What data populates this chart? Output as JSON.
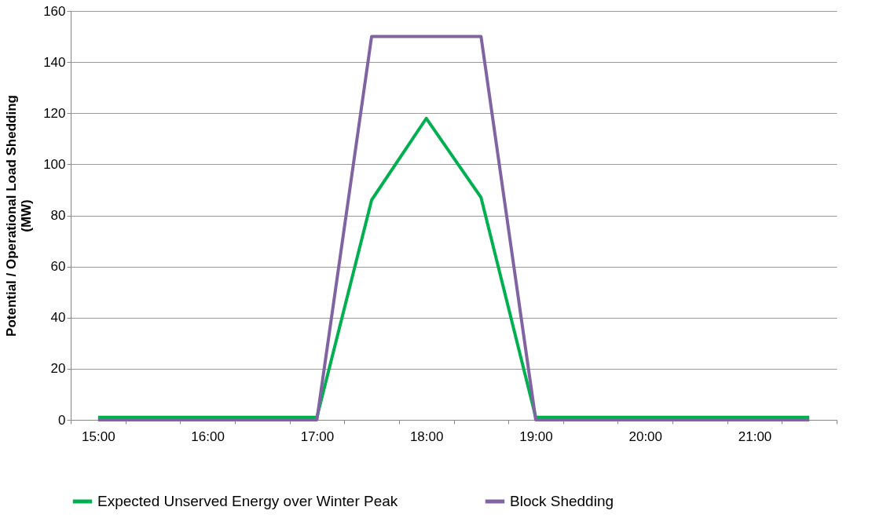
{
  "chart_data": {
    "type": "line",
    "ylabel": "Potential / Operational Load Shedding\n(MW)",
    "categories": [
      "15:00",
      null,
      "16:00",
      null,
      "17:00",
      null,
      "18:00",
      null,
      "19:00",
      null,
      "20:00",
      null,
      "21:00",
      null
    ],
    "series": [
      {
        "name": "Expected Unserved Energy over Winter Peak",
        "color": "#00b050",
        "values": [
          1,
          1,
          1,
          1,
          1,
          86,
          118,
          87,
          1,
          1,
          1,
          1,
          1,
          1
        ]
      },
      {
        "name": "Block Shedding",
        "color": "#8064a2",
        "values": [
          0,
          0,
          0,
          0,
          0,
          150,
          150,
          150,
          0,
          0,
          0,
          0,
          0,
          0
        ]
      }
    ],
    "ylim": [
      0,
      160
    ],
    "yticks": [
      0,
      20,
      40,
      60,
      80,
      100,
      120,
      140,
      160
    ],
    "grid": "y",
    "legend": "bottom",
    "marker": "none",
    "line_style": "solid"
  }
}
